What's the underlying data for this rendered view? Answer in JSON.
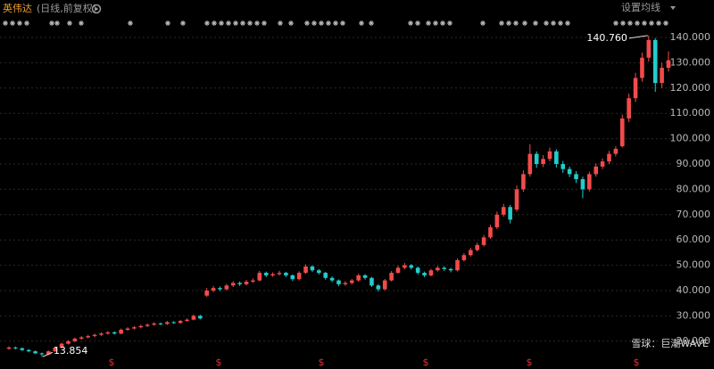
{
  "chart_data": {
    "type": "candlestick",
    "title": "英伟达",
    "subtitle": "(日线,前复权)",
    "settings_button": "设置均线",
    "watermark": "雪球：巨潮WAVE",
    "annotations": [
      {
        "text": "140.760"
      },
      {
        "text": "13.854"
      }
    ],
    "dividend_markers": [
      "$",
      "$",
      "$",
      "$",
      "$",
      "$"
    ],
    "up_color": "#f24b4b",
    "down_color": "#22cccc",
    "grid": true,
    "ylim": [
      12,
      148
    ],
    "yticks": [
      {
        "value": 20,
        "label": "20.000"
      },
      {
        "value": 30,
        "label": "30.000"
      },
      {
        "value": 40,
        "label": "40.000"
      },
      {
        "value": 50,
        "label": "50.000"
      },
      {
        "value": 60,
        "label": "60.000"
      },
      {
        "value": 70,
        "label": "70.000"
      },
      {
        "value": 80,
        "label": "80.000"
      },
      {
        "value": 90,
        "label": "90.000"
      },
      {
        "value": 100,
        "label": "100.000"
      },
      {
        "value": 110,
        "label": "110.000"
      },
      {
        "value": 120,
        "label": "120.000"
      },
      {
        "value": 130,
        "label": "130.000"
      },
      {
        "value": 140,
        "label": "140.000"
      }
    ],
    "open": [
      17.0,
      17.5,
      17.2,
      16.5,
      16.0,
      15.2,
      14.8,
      16.0,
      17.5,
      19.0,
      20.0,
      21.0,
      21.5,
      22.0,
      22.5,
      23.0,
      23.5,
      23.0,
      24.5,
      25.0,
      25.5,
      26.0,
      26.5,
      27.0,
      26.8,
      27.5,
      27.2,
      28.0,
      28.5,
      30.0,
      38.0,
      40.0,
      41.0,
      40.5,
      42.0,
      43.0,
      42.5,
      43.5,
      44.0,
      47.0,
      46.0,
      46.5,
      47.0,
      46.0,
      44.5,
      47.0,
      49.5,
      48.0,
      47.0,
      45.0,
      44.0,
      42.5,
      43.0,
      44.0,
      46.0,
      45.0,
      42.0,
      40.5,
      44.0,
      47.0,
      49.0,
      50.0,
      49.0,
      47.0,
      46.0,
      48.0,
      49.0,
      48.5,
      48.0,
      52.0,
      54.0,
      56.0,
      58.0,
      61.0,
      65.0,
      70.0,
      73.0,
      72.0,
      80.0,
      86.0,
      94.0,
      90.0,
      92.0,
      95.0,
      90.0,
      88.0,
      86.0,
      84.0,
      80.0,
      86.0,
      89.0,
      91.0,
      94.0,
      97.0,
      108.0,
      116.0,
      124.0,
      132.0,
      139.0,
      122.0,
      128.0
    ],
    "high": [
      18.0,
      17.9,
      17.5,
      16.9,
      16.3,
      15.5,
      16.3,
      17.8,
      19.4,
      20.4,
      21.4,
      22.0,
      22.5,
      23.0,
      23.5,
      24.0,
      23.9,
      25.0,
      25.5,
      26.0,
      26.5,
      27.0,
      27.5,
      27.4,
      28.0,
      27.9,
      28.4,
      29.0,
      30.5,
      30.4,
      41.0,
      41.8,
      41.6,
      42.6,
      43.7,
      43.6,
      44.2,
      44.8,
      47.8,
      47.5,
      47.2,
      47.8,
      47.4,
      46.4,
      47.6,
      50.4,
      50.0,
      48.5,
      47.4,
      45.6,
      44.4,
      43.7,
      44.6,
      46.7,
      46.5,
      45.4,
      42.5,
      44.6,
      47.7,
      49.8,
      50.9,
      50.5,
      49.5,
      47.5,
      48.6,
      49.7,
      49.6,
      49.0,
      52.7,
      54.8,
      56.9,
      58.9,
      62.0,
      66.0,
      71.2,
      74.2,
      73.8,
      81.5,
      87.5,
      97.8,
      95.0,
      93.5,
      96.5,
      95.8,
      91.2,
      89.0,
      87.2,
      85.0,
      87.0,
      90.2,
      92.2,
      95.2,
      97.0,
      109.5,
      117.8,
      126.0,
      134.0,
      140.76,
      139.8,
      130.0,
      134.5
    ],
    "low": [
      16.6,
      16.8,
      16.1,
      15.6,
      14.9,
      13.854,
      14.5,
      15.7,
      17.2,
      18.7,
      19.6,
      20.6,
      21.1,
      21.6,
      22.1,
      22.6,
      22.6,
      22.7,
      24.1,
      24.6,
      25.1,
      25.6,
      26.1,
      26.3,
      26.4,
      26.8,
      26.9,
      27.6,
      28.2,
      28.6,
      37.5,
      39.3,
      39.8,
      40.0,
      41.4,
      41.8,
      42.0,
      43.0,
      43.6,
      45.3,
      45.4,
      45.9,
      45.3,
      43.8,
      44.0,
      46.6,
      47.3,
      46.3,
      44.3,
      43.3,
      41.8,
      41.9,
      42.4,
      43.5,
      44.3,
      41.4,
      39.6,
      40.1,
      43.6,
      46.6,
      48.4,
      48.3,
      46.3,
      45.3,
      45.6,
      47.5,
      47.8,
      47.2,
      47.6,
      51.5,
      53.4,
      55.4,
      57.4,
      60.4,
      64.3,
      69.2,
      66.5,
      71.2,
      79.0,
      85.0,
      88.5,
      88.8,
      91.0,
      88.6,
      86.5,
      84.8,
      82.5,
      76.5,
      79.2,
      85.0,
      88.0,
      90.0,
      93.0,
      96.5,
      106.5,
      114.5,
      122.5,
      130.5,
      118.5,
      120.0,
      126.5
    ],
    "close": [
      17.5,
      17.2,
      16.5,
      16.0,
      15.2,
      14.8,
      16.0,
      17.5,
      19.0,
      20.0,
      21.0,
      21.5,
      22.0,
      22.5,
      23.0,
      23.5,
      23.0,
      24.5,
      25.0,
      25.5,
      26.0,
      26.5,
      27.0,
      26.8,
      27.5,
      27.2,
      28.0,
      28.5,
      30.0,
      29.0,
      40.0,
      41.0,
      40.5,
      42.0,
      43.0,
      42.5,
      43.5,
      44.0,
      47.0,
      46.0,
      46.5,
      47.0,
      46.0,
      44.5,
      47.0,
      49.5,
      48.0,
      47.0,
      45.0,
      44.0,
      42.5,
      43.0,
      44.0,
      46.0,
      45.0,
      42.0,
      40.5,
      44.0,
      47.0,
      49.0,
      50.0,
      49.0,
      47.0,
      46.0,
      48.0,
      49.0,
      48.5,
      48.0,
      52.0,
      54.0,
      56.0,
      58.0,
      61.0,
      65.0,
      70.0,
      73.0,
      68.0,
      80.0,
      86.0,
      94.0,
      90.0,
      92.0,
      95.0,
      90.0,
      88.0,
      86.0,
      84.0,
      80.0,
      86.0,
      89.0,
      91.0,
      94.0,
      96.0,
      108.0,
      116.0,
      124.0,
      132.0,
      139.0,
      122.0,
      128.0,
      131.0
    ]
  }
}
